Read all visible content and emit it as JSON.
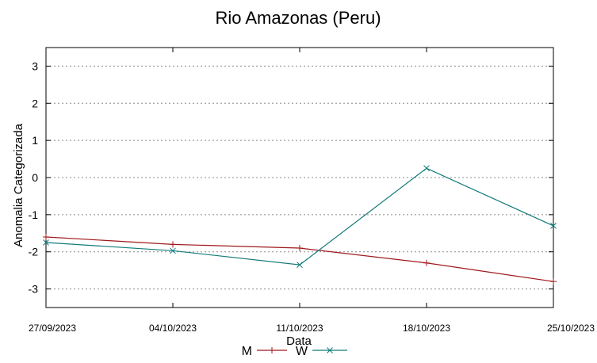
{
  "chart_data": {
    "type": "line",
    "title": "Rio Amazonas (Peru)",
    "xlabel": "Data",
    "ylabel": "Anomalia Categorizada",
    "categories": [
      "27/09/2023",
      "04/10/2023",
      "11/10/2023",
      "18/10/2023",
      "25/10/2023"
    ],
    "ylim": [
      -3.5,
      3.5
    ],
    "yticks": [
      3,
      2,
      1,
      0,
      -1,
      -2,
      -3
    ],
    "grid": true,
    "legend_position": "bottom-center",
    "series": [
      {
        "name": "M",
        "marker": "+",
        "color": "#a0181c",
        "values": [
          -1.6,
          -1.8,
          -1.9,
          -2.3,
          -2.8
        ]
      },
      {
        "name": "W",
        "marker": "x",
        "color": "#127a7a",
        "values": [
          -1.75,
          -1.97,
          -2.35,
          0.25,
          -1.3
        ]
      }
    ]
  }
}
